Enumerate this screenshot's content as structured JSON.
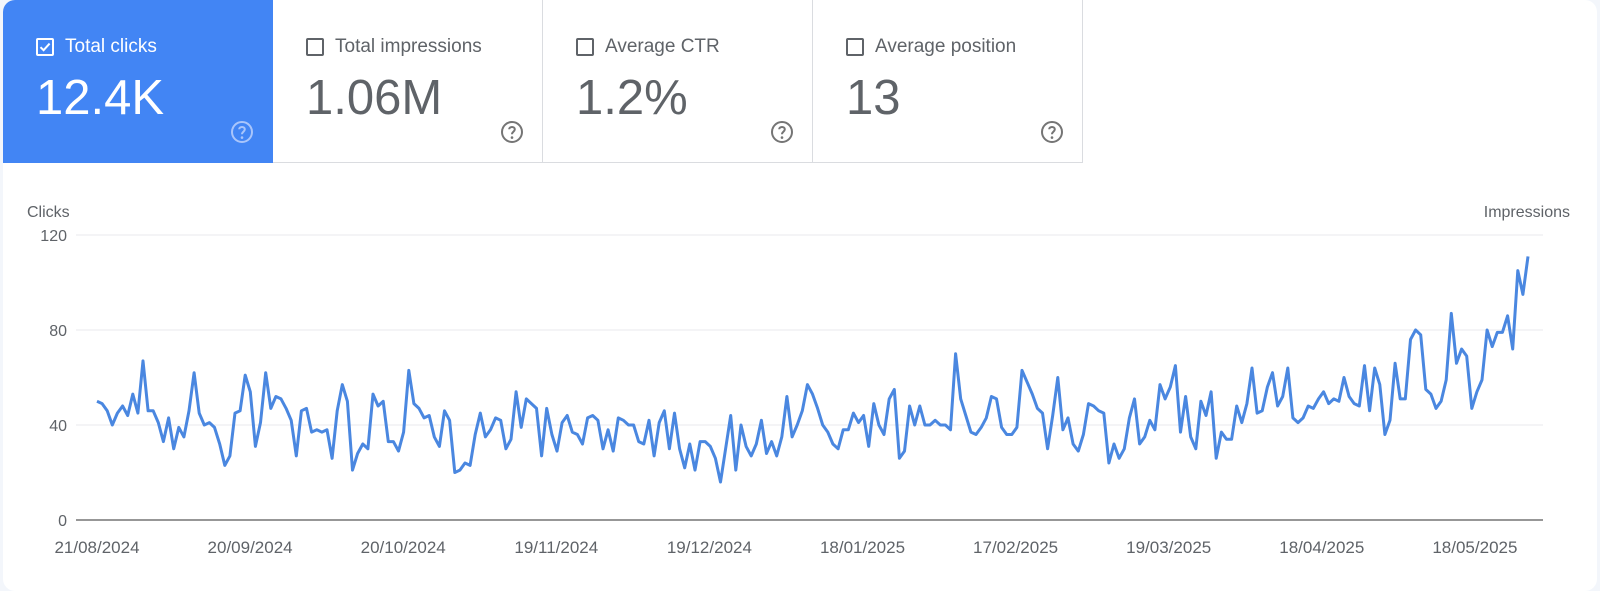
{
  "tiles": [
    {
      "label": "Total clicks",
      "value": "12.4K",
      "checked": true
    },
    {
      "label": "Total impressions",
      "value": "1.06M",
      "checked": false
    },
    {
      "label": "Average CTR",
      "value": "1.2%",
      "checked": false
    },
    {
      "label": "Average position",
      "value": "13",
      "checked": false
    }
  ],
  "colors": {
    "accent": "#4285f4",
    "line": "#4a87e0"
  },
  "chart_data": {
    "type": "line",
    "title": "",
    "ylabel": "Clicks",
    "y2label": "Impressions",
    "ylim": [
      0,
      120
    ],
    "yticks": [
      0,
      40,
      80,
      120
    ],
    "xticks": [
      "21/08/2024",
      "20/09/2024",
      "20/10/2024",
      "19/11/2024",
      "19/12/2024",
      "18/01/2025",
      "17/02/2025",
      "19/03/2025",
      "18/04/2025",
      "18/05/2025"
    ],
    "grid": true,
    "x_start": "21/08/2024",
    "x_end": "30/05/2025",
    "series": [
      {
        "values": [
          50,
          49,
          46,
          40,
          45,
          48,
          44,
          53,
          45,
          67,
          46,
          46,
          41,
          33,
          43,
          30,
          39,
          35,
          46,
          62,
          45,
          40,
          41,
          39,
          32,
          23,
          27,
          45,
          46,
          61,
          54,
          31,
          41,
          62,
          47,
          52,
          51,
          47,
          42,
          27,
          46,
          47,
          37,
          38,
          37,
          38,
          26,
          46,
          57,
          50,
          21,
          28,
          32,
          30,
          53,
          48,
          50,
          33,
          33,
          29,
          37,
          63,
          49,
          47,
          43,
          44,
          35,
          31,
          46,
          42,
          20,
          21,
          24,
          23,
          36,
          45,
          35,
          38,
          43,
          42,
          30,
          34,
          54,
          39,
          51,
          49,
          47,
          27,
          47,
          36,
          29,
          41,
          44,
          37,
          36,
          32,
          43,
          44,
          42,
          30,
          38,
          29,
          43,
          42,
          40,
          40,
          33,
          32,
          42,
          27,
          41,
          46,
          30,
          45,
          30,
          22,
          32,
          21,
          33,
          33,
          31,
          26,
          16,
          30,
          44,
          21,
          40,
          31,
          27,
          32,
          42,
          28,
          33,
          27,
          35,
          52,
          35,
          40,
          46,
          57,
          53,
          47,
          40,
          37,
          32,
          30,
          38,
          38,
          45,
          41,
          44,
          31,
          49,
          40,
          36,
          51,
          55,
          26,
          29,
          48,
          40,
          48,
          40,
          40,
          42,
          40,
          40,
          38,
          70,
          51,
          44,
          37,
          36,
          39,
          43,
          52,
          51,
          39,
          36,
          36,
          39,
          63,
          58,
          53,
          47,
          45,
          30,
          44,
          60,
          38,
          43,
          32,
          29,
          36,
          49,
          48,
          46,
          45,
          24,
          32,
          26,
          30,
          43,
          51,
          32,
          35,
          42,
          38,
          57,
          51,
          56,
          65,
          37,
          52,
          35,
          30,
          50,
          44,
          54,
          26,
          37,
          34,
          34,
          48,
          41,
          49,
          64,
          45,
          46,
          56,
          62,
          48,
          52,
          64,
          43,
          41,
          43,
          48,
          47,
          51,
          54,
          49,
          51,
          50,
          60,
          52,
          49,
          48,
          65,
          46,
          64,
          57,
          36,
          42,
          66,
          51,
          51,
          76,
          80,
          78,
          55,
          53,
          47,
          50,
          59,
          87,
          66,
          72,
          69,
          47,
          54,
          59,
          80,
          73,
          79,
          79,
          86,
          72,
          105,
          95,
          111
        ]
      }
    ]
  }
}
